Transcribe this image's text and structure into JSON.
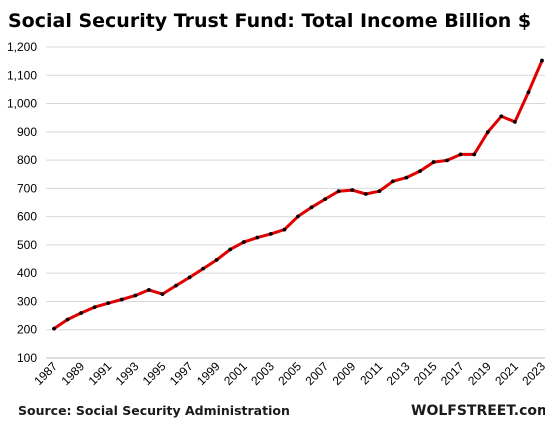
{
  "chart_data": {
    "type": "line",
    "title": "Social Security Trust Fund: Total Income Billion $",
    "xlabel": "",
    "ylabel": "",
    "ylim": [
      100,
      1200
    ],
    "yticks": [
      "100",
      "200",
      "300",
      "400",
      "500",
      "600",
      "700",
      "800",
      "900",
      "1,000",
      "1,100",
      "1,200"
    ],
    "xticks": [
      "1987",
      "1989",
      "1991",
      "1993",
      "1995",
      "1997",
      "1999",
      "2001",
      "2003",
      "2005",
      "2007",
      "2009",
      "2011",
      "2013",
      "2015",
      "2017",
      "2019",
      "2021",
      "2023"
    ],
    "grid": "horizontal",
    "legend": "none",
    "series": [
      {
        "color": "#e00000",
        "marker_color": "#000000",
        "x": [
          1987,
          1988,
          1989,
          1990,
          1991,
          1992,
          1993,
          1994,
          1995,
          1996,
          1997,
          1998,
          1999,
          2000,
          2001,
          2002,
          2003,
          2004,
          2005,
          2006,
          2007,
          2008,
          2009,
          2010,
          2011,
          2012,
          2013,
          2014,
          2015,
          2016,
          2017,
          2018,
          2019,
          2020,
          2021,
          2022,
          2023
        ],
        "values": [
          204,
          236,
          259,
          280,
          294,
          307,
          321,
          341,
          326,
          356,
          385,
          416,
          447,
          484,
          510,
          526,
          539,
          554,
          601,
          633,
          662,
          690,
          694,
          680,
          690,
          725,
          738,
          761,
          793,
          799,
          820,
          820,
          899,
          955,
          935,
          1040,
          1152
        ]
      }
    ]
  },
  "source": "Source: Social Security Administration",
  "brand": "WOLFSTREET.com"
}
